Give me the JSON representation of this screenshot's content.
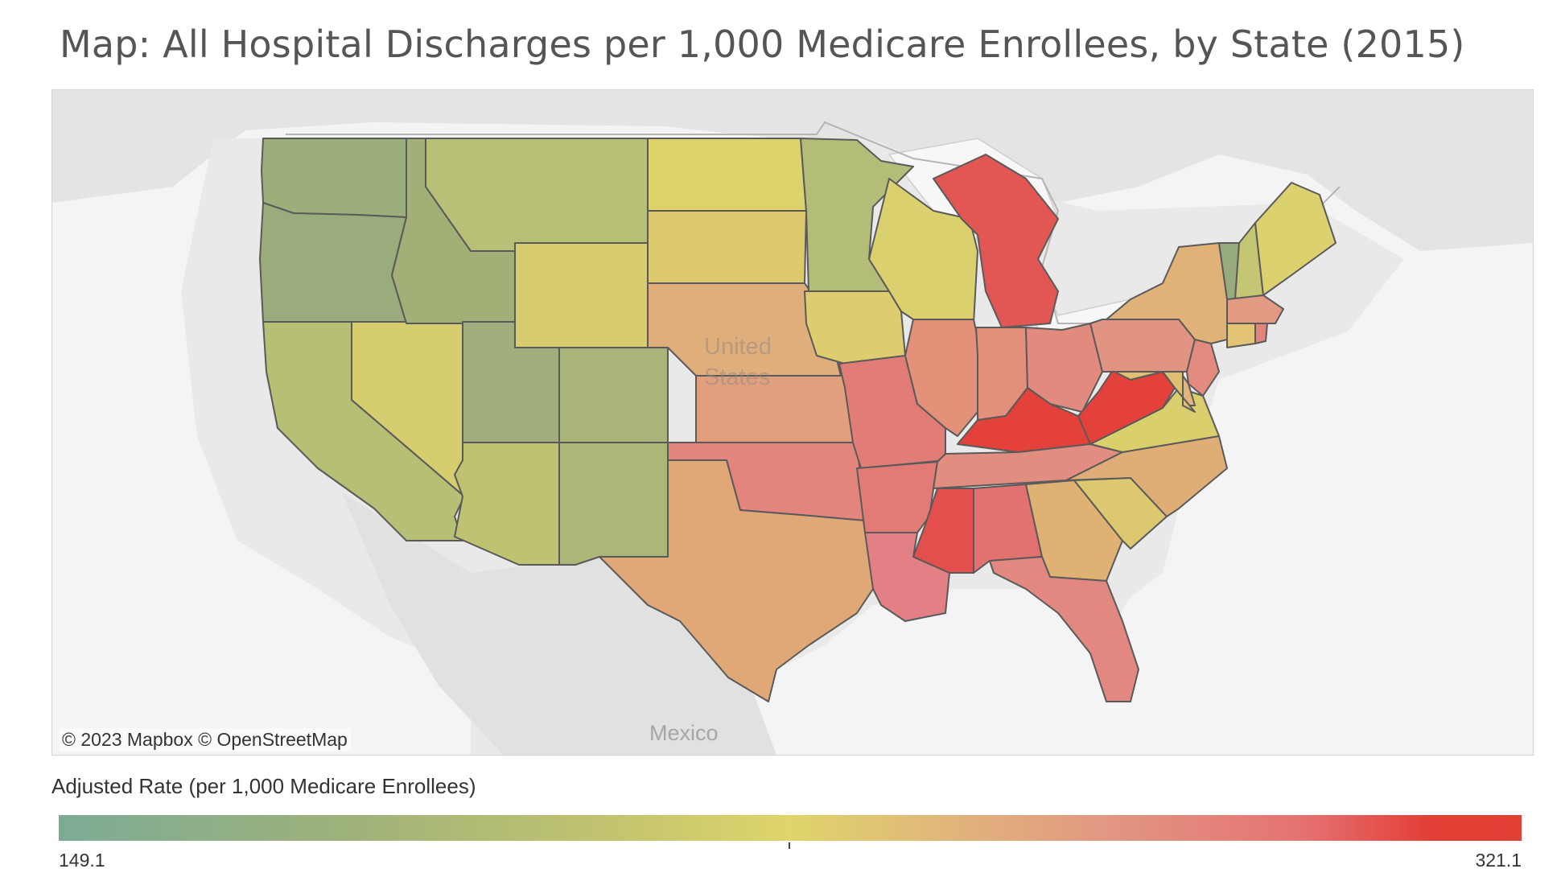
{
  "title": "Map: All Hospital Discharges per 1,000 Medicare Enrollees, by State (2015)",
  "map": {
    "attribution": "© 2023 Mapbox  © OpenStreetMap",
    "labels": {
      "us_line1": "United",
      "us_line2": "States",
      "mexico": "Mexico"
    }
  },
  "legend": {
    "title": "Adjusted Rate (per 1,000 Medicare Enrollees)",
    "min": "149.1",
    "max": "321.1",
    "colors": [
      "#7cab95",
      "#dfd56a",
      "#e23f35"
    ]
  },
  "states": [
    {
      "id": "WA",
      "color": "#9cae7a"
    },
    {
      "id": "OR",
      "color": "#9aab7c"
    },
    {
      "id": "CA",
      "color": "#b6bf74"
    },
    {
      "id": "NV",
      "color": "#d6cd6e"
    },
    {
      "id": "ID",
      "color": "#a2b078"
    },
    {
      "id": "MT",
      "color": "#b8c077"
    },
    {
      "id": "WY",
      "color": "#d7cd6f"
    },
    {
      "id": "UT",
      "color": "#9fae7c"
    },
    {
      "id": "CO",
      "color": "#a8b478"
    },
    {
      "id": "AZ",
      "color": "#bfc371"
    },
    {
      "id": "NM",
      "color": "#acb676"
    },
    {
      "id": "ND",
      "color": "#dcd36c"
    },
    {
      "id": "SD",
      "color": "#ddc96d"
    },
    {
      "id": "NE",
      "color": "#dfae7a"
    },
    {
      "id": "KS",
      "color": "#e19f7d"
    },
    {
      "id": "OK",
      "color": "#e3857d"
    },
    {
      "id": "TX",
      "color": "#dfa876"
    },
    {
      "id": "MN",
      "color": "#b4bd77"
    },
    {
      "id": "IA",
      "color": "#ddcd6e"
    },
    {
      "id": "MO",
      "color": "#e27c76"
    },
    {
      "id": "AR",
      "color": "#e27b76"
    },
    {
      "id": "LA",
      "color": "#e38085"
    },
    {
      "id": "WI",
      "color": "#dbd06e"
    },
    {
      "id": "IL",
      "color": "#e39279"
    },
    {
      "id": "MI",
      "color": "#e25653"
    },
    {
      "id": "IN",
      "color": "#e2907c"
    },
    {
      "id": "OH",
      "color": "#e38a7f"
    },
    {
      "id": "KY",
      "color": "#e3413a"
    },
    {
      "id": "TN",
      "color": "#e18d7f"
    },
    {
      "id": "MS",
      "color": "#e24f4d"
    },
    {
      "id": "AL",
      "color": "#e3716f"
    },
    {
      "id": "GA",
      "color": "#dfb273"
    },
    {
      "id": "FL",
      "color": "#e38881"
    },
    {
      "id": "SC",
      "color": "#dcc86f"
    },
    {
      "id": "NC",
      "color": "#dfae76"
    },
    {
      "id": "VA",
      "color": "#d9cf6c"
    },
    {
      "id": "WV",
      "color": "#e3413a"
    },
    {
      "id": "PA",
      "color": "#e19481"
    },
    {
      "id": "NY",
      "color": "#e0b278"
    },
    {
      "id": "VT",
      "color": "#98ab7c"
    },
    {
      "id": "NH",
      "color": "#c5c674"
    },
    {
      "id": "ME",
      "color": "#dbd16e"
    },
    {
      "id": "MA",
      "color": "#e29a82"
    },
    {
      "id": "CT",
      "color": "#e2c474"
    },
    {
      "id": "RI",
      "color": "#e3847c"
    },
    {
      "id": "NJ",
      "color": "#e38b7f"
    },
    {
      "id": "DE",
      "color": "#e3b47a"
    },
    {
      "id": "MD",
      "color": "#dfbf71"
    }
  ]
}
